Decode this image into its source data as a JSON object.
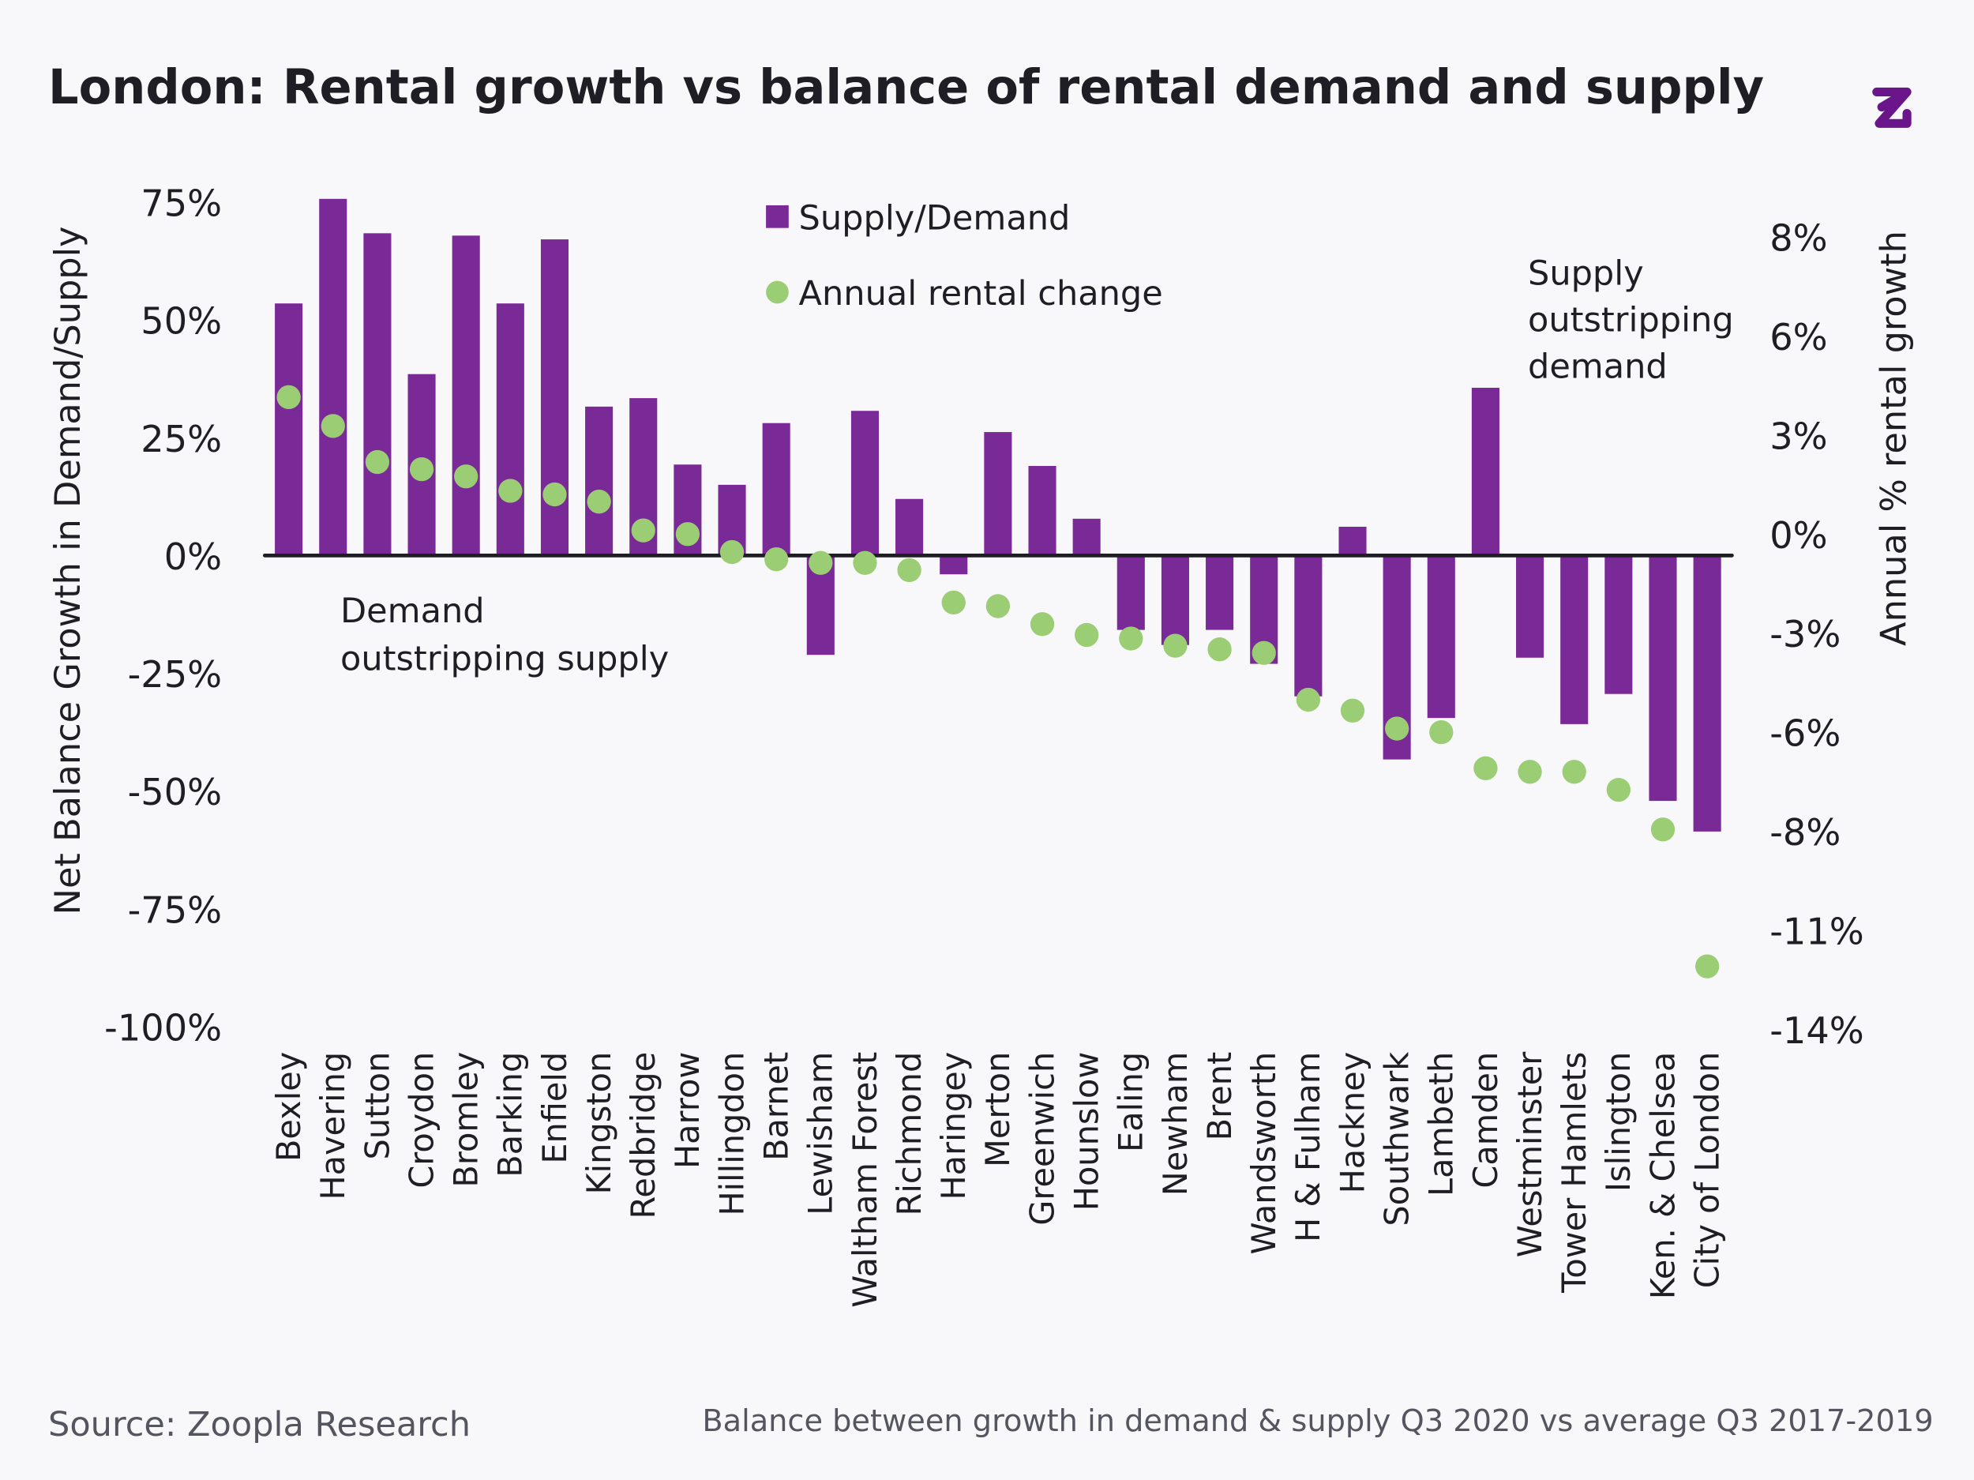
{
  "title": "London: Rental growth vs balance of rental demand and supply",
  "logo_text": "Z",
  "source": "Source: Zoopla Research",
  "footnote": "Balance between growth in demand & supply Q3 2020 vs average Q3 2017-2019",
  "colors": {
    "bar": "#7a2a96",
    "dot": "#9bcd74",
    "text": "#1e1e24",
    "muted": "#555560",
    "logo": "#6a168a",
    "background": "#f8f8fa"
  },
  "chart_data": {
    "type": "bar",
    "categories": [
      "Bexley",
      "Havering",
      "Sutton",
      "Croydon",
      "Bromley",
      "Barking",
      "Enfield",
      "Kingston",
      "Redbridge",
      "Harrow",
      "Hillingdon",
      "Barnet",
      "Lewisham",
      "Waltham Forest",
      "Richmond",
      "Haringey",
      "Merton",
      "Greenwich",
      "Hounslow",
      "Ealing",
      "Newham",
      "Brent",
      "Wandsworth",
      "H & Fulham",
      "Hackney",
      "Southwark",
      "Lambeth",
      "Camden",
      "Westminster",
      "Tower Hamlets",
      "Islington",
      "Ken. & Chelsea",
      "City of London"
    ],
    "series": [
      {
        "name": "Supply/Demand",
        "type": "bar",
        "axis": "left",
        "values": [
          53.5,
          75.7,
          68.4,
          38.5,
          67.9,
          53.5,
          67.1,
          31.6,
          33.4,
          19.3,
          15.0,
          28.1,
          -21.1,
          30.7,
          12.0,
          -4.0,
          26.2,
          19.0,
          7.8,
          -15.8,
          -19.0,
          -15.8,
          -23.0,
          -29.9,
          6.1,
          -43.3,
          -34.5,
          35.6,
          -21.7,
          -35.8,
          -29.4,
          -52.1,
          -58.6
        ]
      },
      {
        "name": "Annual rental change",
        "type": "scatter",
        "axis": "right",
        "values": [
          3.8,
          3.0,
          2.0,
          1.8,
          1.6,
          1.2,
          1.1,
          0.9,
          0.1,
          0.0,
          -0.5,
          -0.7,
          -0.8,
          -0.8,
          -1.0,
          -1.9,
          -2.0,
          -2.5,
          -2.8,
          -2.9,
          -3.1,
          -3.2,
          -3.3,
          -4.6,
          -4.9,
          -5.4,
          -5.5,
          -6.5,
          -6.6,
          -6.6,
          -7.1,
          -8.2,
          -12.0
        ]
      }
    ],
    "ylabel": "Net Balance Growth in Demand/Supply",
    "ylabel_right": "Annual % rental growth",
    "ylim": [
      -100,
      75
    ],
    "y_ticks": [
      "75%",
      "50%",
      "25%",
      "0%",
      "-25%",
      "-50%",
      "-75%",
      "-100%"
    ],
    "ylim_right": [
      -13.75,
      8.25
    ],
    "y_ticks_right": [
      "8%",
      "6%",
      "3%",
      "0%",
      "-3%",
      "-6%",
      "-8%",
      "-11%",
      "-14%"
    ],
    "annotations": {
      "demand": [
        "Demand",
        "outstripping supply"
      ],
      "supply": [
        "Supply",
        "outstripping",
        "demand"
      ]
    },
    "legend": {
      "placement": "top-center",
      "entries": [
        "Supply/Demand",
        "Annual rental change"
      ]
    },
    "grid": false
  }
}
